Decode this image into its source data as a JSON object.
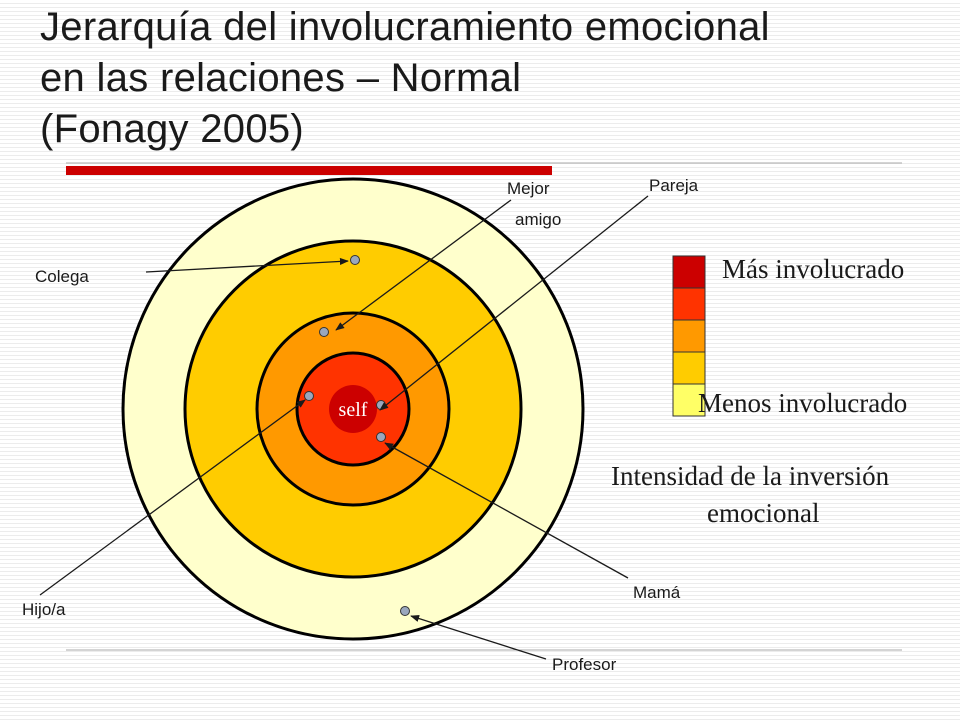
{
  "title": {
    "line1": "Jerarquía del involucramiento emocional",
    "line2": "en las relaciones – Normal",
    "line3": "(Fonagy 2005)"
  },
  "center_label": "self",
  "people": {
    "colega": "Colega",
    "mejor_line1": "Mejor",
    "mejor_line2": "amigo",
    "pareja": "Pareja",
    "hijo": "Hijo/a",
    "mama": "Mamá",
    "profesor": "Profesor"
  },
  "legend": {
    "more": "Más involucrado",
    "less": "Menos involucrado",
    "caption_line1": "Intensidad de la inversión",
    "caption_line2": "emocional",
    "colors": [
      "#cc0000",
      "#ff3300",
      "#ff9900",
      "#ffcc00",
      "#ffff66"
    ]
  },
  "colors": {
    "ring_outer": "#ffffcc",
    "ring_2": "#ffcc00",
    "ring_3": "#ff9900",
    "ring_4": "#ff3300",
    "self": "#cc0000",
    "accent_bar": "#cc0000",
    "dot": "#9aa7bd"
  }
}
